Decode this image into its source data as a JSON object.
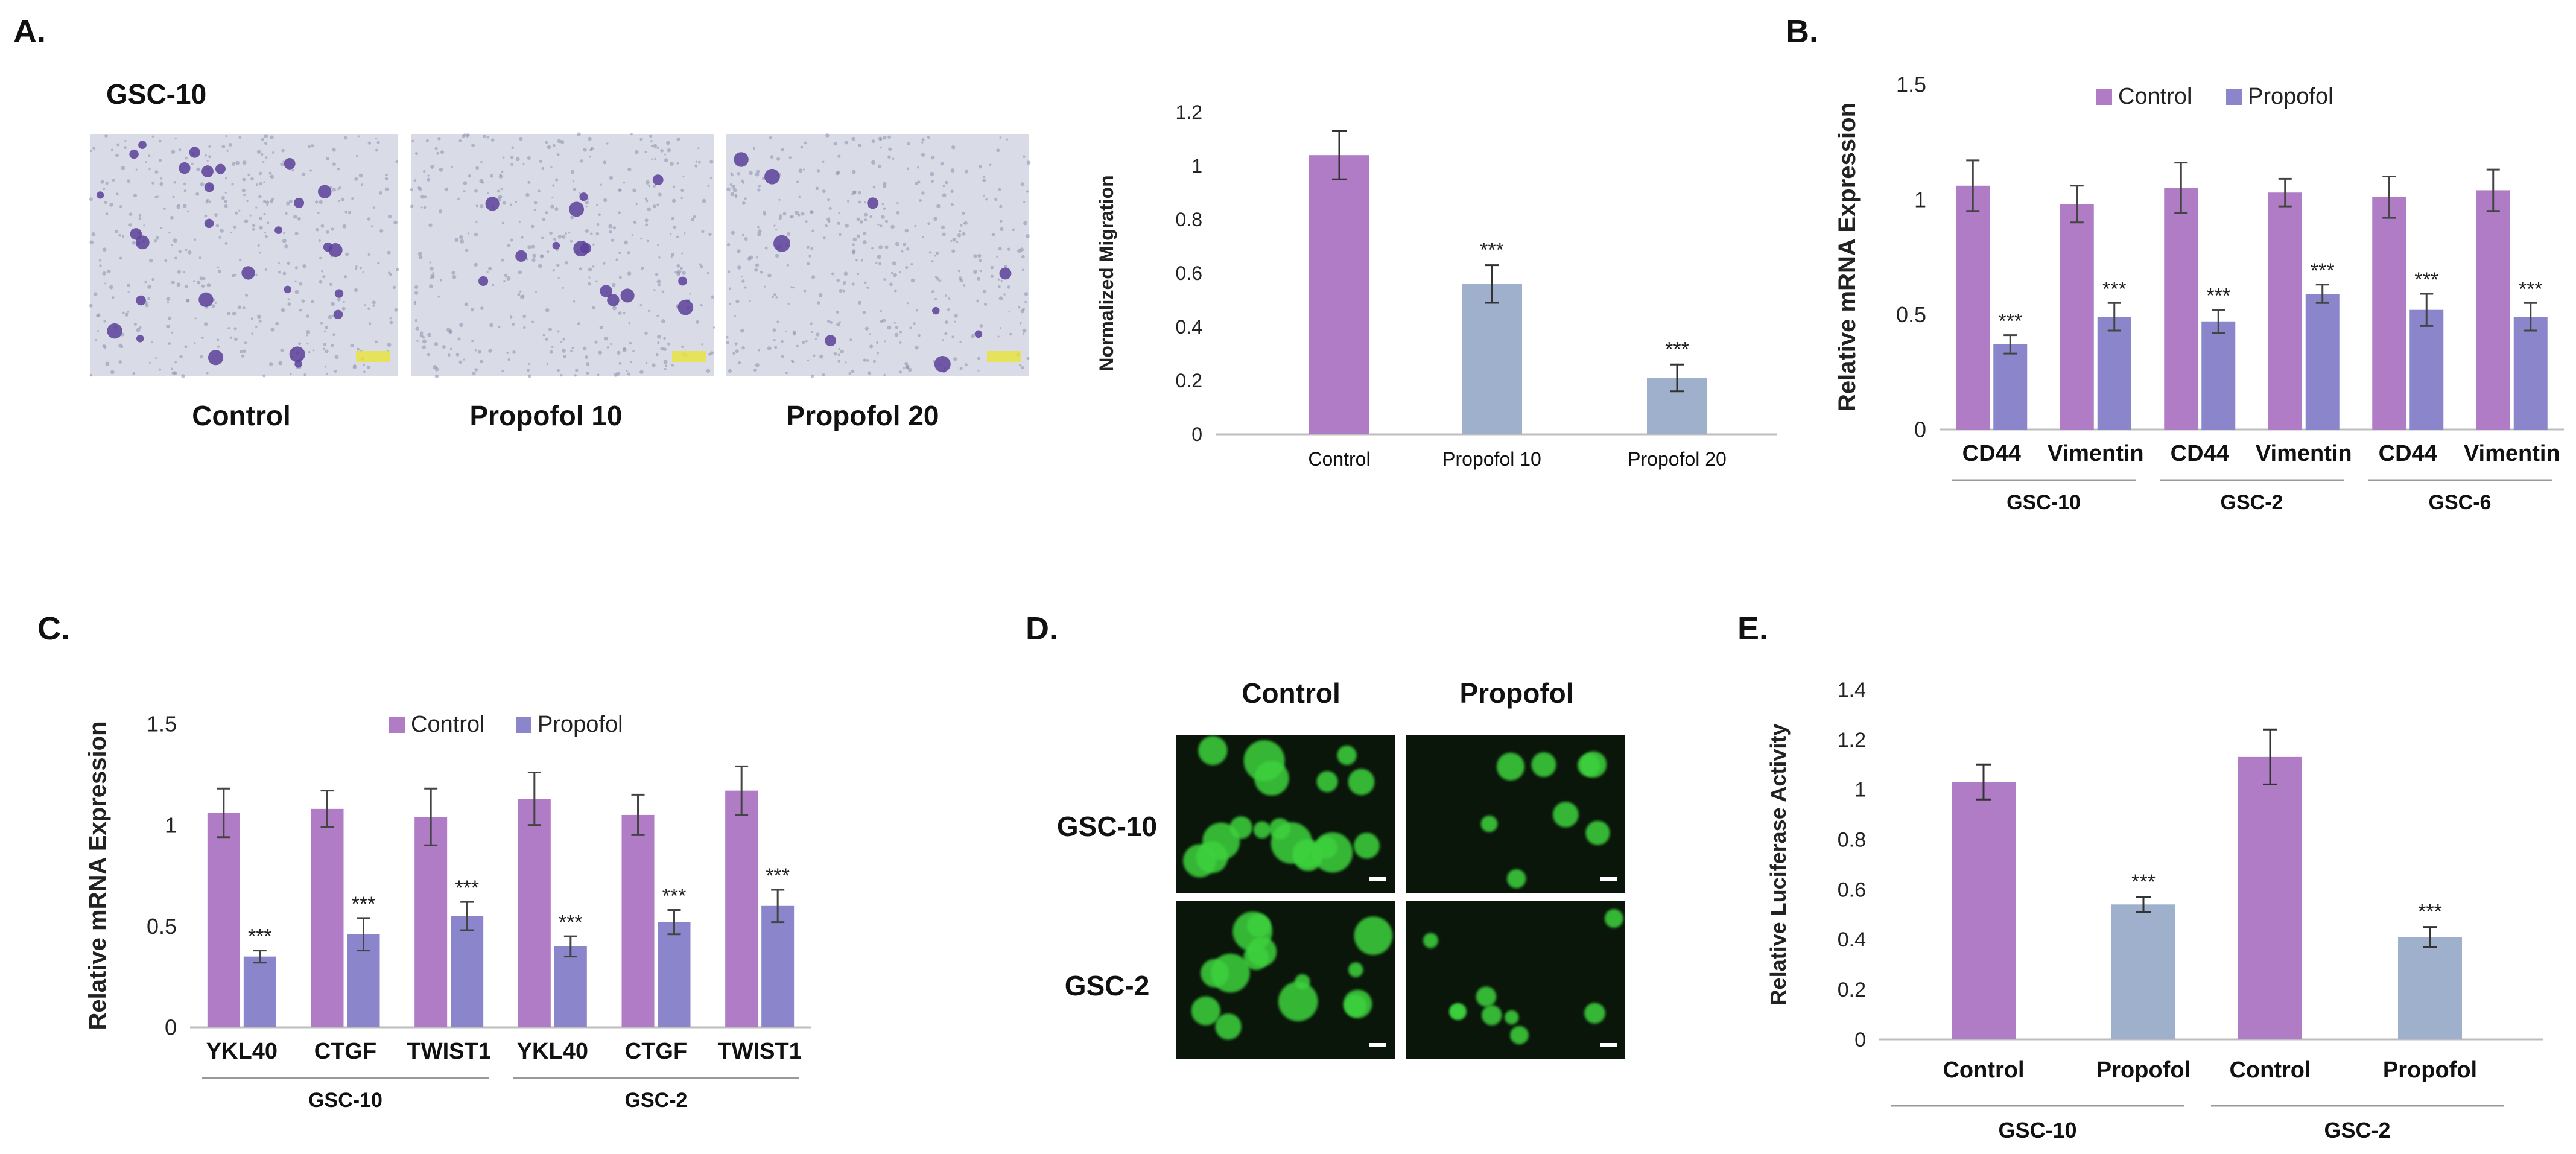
{
  "panels": {
    "a": {
      "letter": "A.",
      "cell_line": "GSC-10",
      "image_labels": [
        "Control",
        "Propofol 10",
        "Propofol 20"
      ]
    },
    "b": {
      "letter": "B."
    },
    "c": {
      "letter": "C."
    },
    "d": {
      "letter": "D.",
      "col_labels": [
        "Control",
        "Propofol"
      ],
      "row_labels": [
        "GSC-10",
        "GSC-2"
      ]
    },
    "e": {
      "letter": "E."
    }
  },
  "colors": {
    "control": "#b07cc6",
    "propofol_a_e": "#9fb0cc",
    "propofol_b_c": "#8b86cc",
    "stain_bg": "#d9dbe6",
    "stain_cell": "#5a3f98",
    "fluor_bg": "#0a160a",
    "fluor_cell": "#3ed23e"
  },
  "chart_data": [
    {
      "id": "migration",
      "type": "bar",
      "title": "",
      "xlabel": "",
      "ylabel": "Normalized Migration",
      "ylim": [
        0,
        1.2
      ],
      "yticks": [
        "0",
        "0.2",
        "0.4",
        "0.6",
        "0.8",
        "1",
        "1.2"
      ],
      "categories": [
        "Control",
        "Propofol 10",
        "Propofol 20"
      ],
      "values": [
        1.04,
        0.56,
        0.21
      ],
      "errors": [
        0.09,
        0.07,
        0.05
      ],
      "significance": [
        "",
        "***",
        "***"
      ]
    },
    {
      "id": "mrna_b",
      "type": "bar",
      "title": "",
      "xlabel": "",
      "ylabel": "Relative mRNA Expression",
      "ylim": [
        0,
        1.5
      ],
      "yticks": [
        "0",
        "0.5",
        "1",
        "1.5"
      ],
      "legend": [
        "Control",
        "Propofol"
      ],
      "legend_position": "top",
      "categories": [
        "CD44",
        "Vimentin",
        "CD44",
        "Vimentin",
        "CD44",
        "Vimentin"
      ],
      "groups": [
        "GSC-10",
        "GSC-2",
        "GSC-6"
      ],
      "series": [
        {
          "name": "Control",
          "values": [
            1.06,
            0.98,
            1.05,
            1.03,
            1.01,
            1.04
          ],
          "errors": [
            0.11,
            0.08,
            0.11,
            0.06,
            0.09,
            0.09
          ]
        },
        {
          "name": "Propofol",
          "values": [
            0.37,
            0.49,
            0.47,
            0.59,
            0.52,
            0.49
          ],
          "errors": [
            0.04,
            0.06,
            0.05,
            0.04,
            0.07,
            0.06
          ]
        }
      ],
      "significance": [
        "***",
        "***",
        "***",
        "***",
        "***",
        "***"
      ]
    },
    {
      "id": "mrna_c",
      "type": "bar",
      "title": "",
      "xlabel": "",
      "ylabel": "Relative  mRNA Expression",
      "ylim": [
        0,
        1.5
      ],
      "yticks": [
        "0",
        "0.5",
        "1",
        "1.5"
      ],
      "legend": [
        "Control",
        "Propofol"
      ],
      "legend_position": "top",
      "categories": [
        "YKL40",
        "CTGF",
        "TWIST1",
        "YKL40",
        "CTGF",
        "TWIST1"
      ],
      "groups": [
        "GSC-10",
        "GSC-2"
      ],
      "series": [
        {
          "name": "Control",
          "values": [
            1.06,
            1.08,
            1.04,
            1.13,
            1.05,
            1.17
          ],
          "errors": [
            0.12,
            0.09,
            0.14,
            0.13,
            0.1,
            0.12
          ]
        },
        {
          "name": "Propofol",
          "values": [
            0.35,
            0.46,
            0.55,
            0.4,
            0.52,
            0.6
          ],
          "errors": [
            0.03,
            0.08,
            0.07,
            0.05,
            0.06,
            0.08
          ]
        }
      ],
      "significance": [
        "***",
        "***",
        "***",
        "***",
        "***",
        "***"
      ]
    },
    {
      "id": "luciferase",
      "type": "bar",
      "title": "",
      "xlabel": "",
      "ylabel": "Relative Luciferase Activity",
      "ylim": [
        0,
        1.4
      ],
      "yticks": [
        "0",
        "0.2",
        "0.4",
        "0.6",
        "0.8",
        "1",
        "1.2",
        "1.4"
      ],
      "categories": [
        "Control",
        "Propofol",
        "Control",
        "Propofol"
      ],
      "groups": [
        "GSC-10",
        "GSC-2"
      ],
      "values": [
        1.03,
        0.54,
        1.13,
        0.41
      ],
      "errors": [
        0.07,
        0.03,
        0.11,
        0.04
      ],
      "significance": [
        "",
        "***",
        "",
        "***"
      ]
    }
  ]
}
